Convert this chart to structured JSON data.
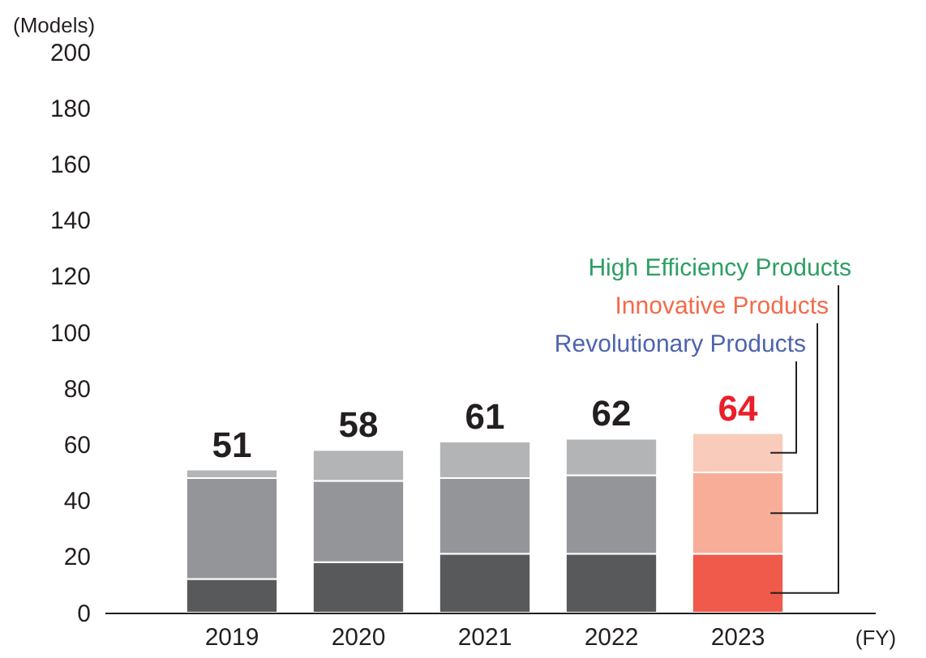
{
  "chart_data": {
    "type": "bar",
    "stacked": true,
    "xlabel": "(FY)",
    "ylabel": "(Models)",
    "categories": [
      "2019",
      "2020",
      "2021",
      "2022",
      "2023"
    ],
    "series": [
      {
        "name": "High Efficiency Products",
        "color": "#2e9e64",
        "colors": [
          "#58595b",
          "#58595b",
          "#58595b",
          "#58595b",
          "#ef5a4a"
        ],
        "values": [
          12,
          18,
          21,
          21,
          21
        ]
      },
      {
        "name": "Innovative Products",
        "color": "#f26b4a",
        "colors": [
          "#939598",
          "#939598",
          "#939598",
          "#939598",
          "#f7ad97"
        ],
        "values": [
          36,
          29,
          27,
          28,
          29
        ]
      },
      {
        "name": "Revolutionary Products",
        "color": "#4f64ad",
        "colors": [
          "#b3b4b6",
          "#b3b4b6",
          "#b3b4b6",
          "#b3b4b6",
          "#f9cbbb"
        ],
        "values": [
          3,
          11,
          13,
          13,
          14
        ]
      }
    ],
    "totals": [
      "51",
      "58",
      "61",
      "62",
      "64"
    ],
    "ylim": [
      0,
      200
    ],
    "yticks": [
      0,
      20,
      40,
      60,
      80,
      100,
      120,
      140,
      160,
      180,
      200
    ],
    "legend": "top right"
  }
}
